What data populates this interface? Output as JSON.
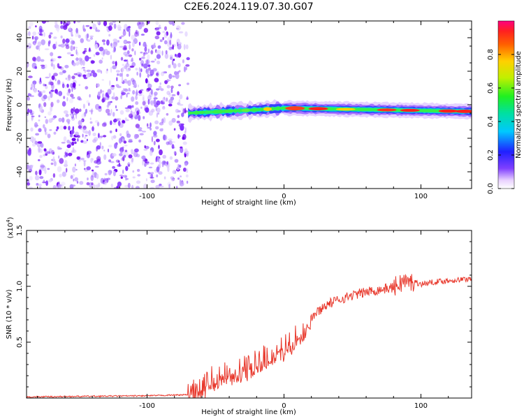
{
  "title": "C2E6.2024.119.07.30.G07",
  "chart_data": [
    {
      "type": "heatmap",
      "xlabel": "Height of straight line (km)",
      "ylabel": "Frequency (Hz)",
      "xlim": [
        -188,
        137
      ],
      "ylim": [
        -50,
        50
      ],
      "xticks": [
        "-100",
        "0",
        "100"
      ],
      "yticks": [
        "-40",
        "-20",
        "0",
        "20",
        "40"
      ],
      "colorbar": {
        "label": "Normalized spectral amplitude",
        "range": [
          0,
          1
        ],
        "ticks": [
          "0.0",
          "0.2",
          "0.4",
          "0.6",
          "0.8"
        ]
      },
      "features": {
        "noise_region_x": [
          -188,
          -70
        ],
        "signal_start_x": -70,
        "signal_line": [
          {
            "x": -70,
            "y": -5
          },
          {
            "x": -20,
            "y": -3
          },
          {
            "x": 0,
            "y": -2
          },
          {
            "x": 137,
            "y": -4
          }
        ]
      }
    },
    {
      "type": "line",
      "xlabel": "Height of straight line (km)",
      "ylabel": "SNR (10 * v/v)",
      "multiplier": "(x10",
      "multiplier_exp": "4",
      "multiplier_close": ")",
      "xlim": [
        -188,
        137
      ],
      "ylim": [
        0,
        15000
      ],
      "xticks": [
        "-100",
        "0",
        "100"
      ],
      "yticks": [
        "0.5",
        "1.0",
        "1.5"
      ],
      "series": [
        {
          "color": "#e8382c",
          "x": [
            -188,
            -150,
            -100,
            -70,
            -60,
            -50,
            -40,
            -30,
            -20,
            -10,
            0,
            10,
            20,
            30,
            40,
            50,
            60,
            70,
            80,
            85,
            88,
            90,
            95,
            100,
            110,
            120,
            130,
            137
          ],
          "y": [
            100,
            150,
            200,
            300,
            1000,
            1800,
            2200,
            2500,
            3000,
            3800,
            4500,
            5500,
            7200,
            8300,
            8800,
            9200,
            9500,
            9700,
            9900,
            10300,
            10500,
            10300,
            10400,
            10200,
            10400,
            10500,
            10600,
            10700
          ]
        }
      ]
    }
  ]
}
